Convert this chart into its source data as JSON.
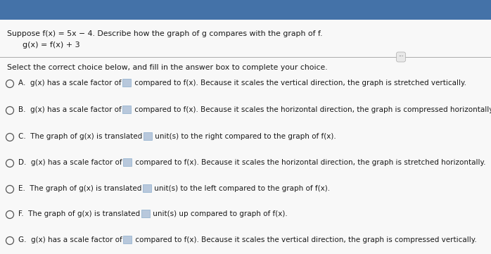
{
  "title_line1": "Suppose f(x) = 5x − 4. Describe how the graph of g compares with the graph of f.",
  "title_line2": "g(x) = f(x) + 3",
  "instruction": "Select the correct choice below, and fill in the answer box to complete your choice.",
  "choices_pre": [
    "A.  g(x) has a scale factor of",
    "B.  g(x) has a scale factor of",
    "C.  The graph of g(x) is translated",
    "D.  g(x) has a scale factor of",
    "E.  The graph of g(x) is translated",
    "F.  The graph of g(x) is translated",
    "G.  g(x) has a scale factor of"
  ],
  "choices_post": [
    " compared to f(x). Because it scales the vertical direction, the graph is stretched vertically.",
    " compared to f(x). Because it scales the horizontal direction, the graph is compressed horizontally.",
    " unit(s) to the right compared to the graph of f(x).",
    " compared to f(x). Because it scales the horizontal direction, the graph is stretched horizontally.",
    " unit(s) to the left compared to the graph of f(x).",
    " unit(s) up compared to graph of f(x).",
    " compared to f(x). Because it scales the vertical direction, the graph is compressed vertically."
  ],
  "bg_top": "#4472a8",
  "bg_main": "#f0f0f0",
  "bg_white": "#f4f4f4",
  "text_color": "#1a1a1a",
  "circle_color": "#555555",
  "box_facecolor": "#b8c8dc",
  "box_edgecolor": "#8aaccc",
  "separator_color": "#aaaaaa",
  "ellipsis_bg": "#e8e8e8",
  "ellipsis_edge": "#aaaaaa"
}
